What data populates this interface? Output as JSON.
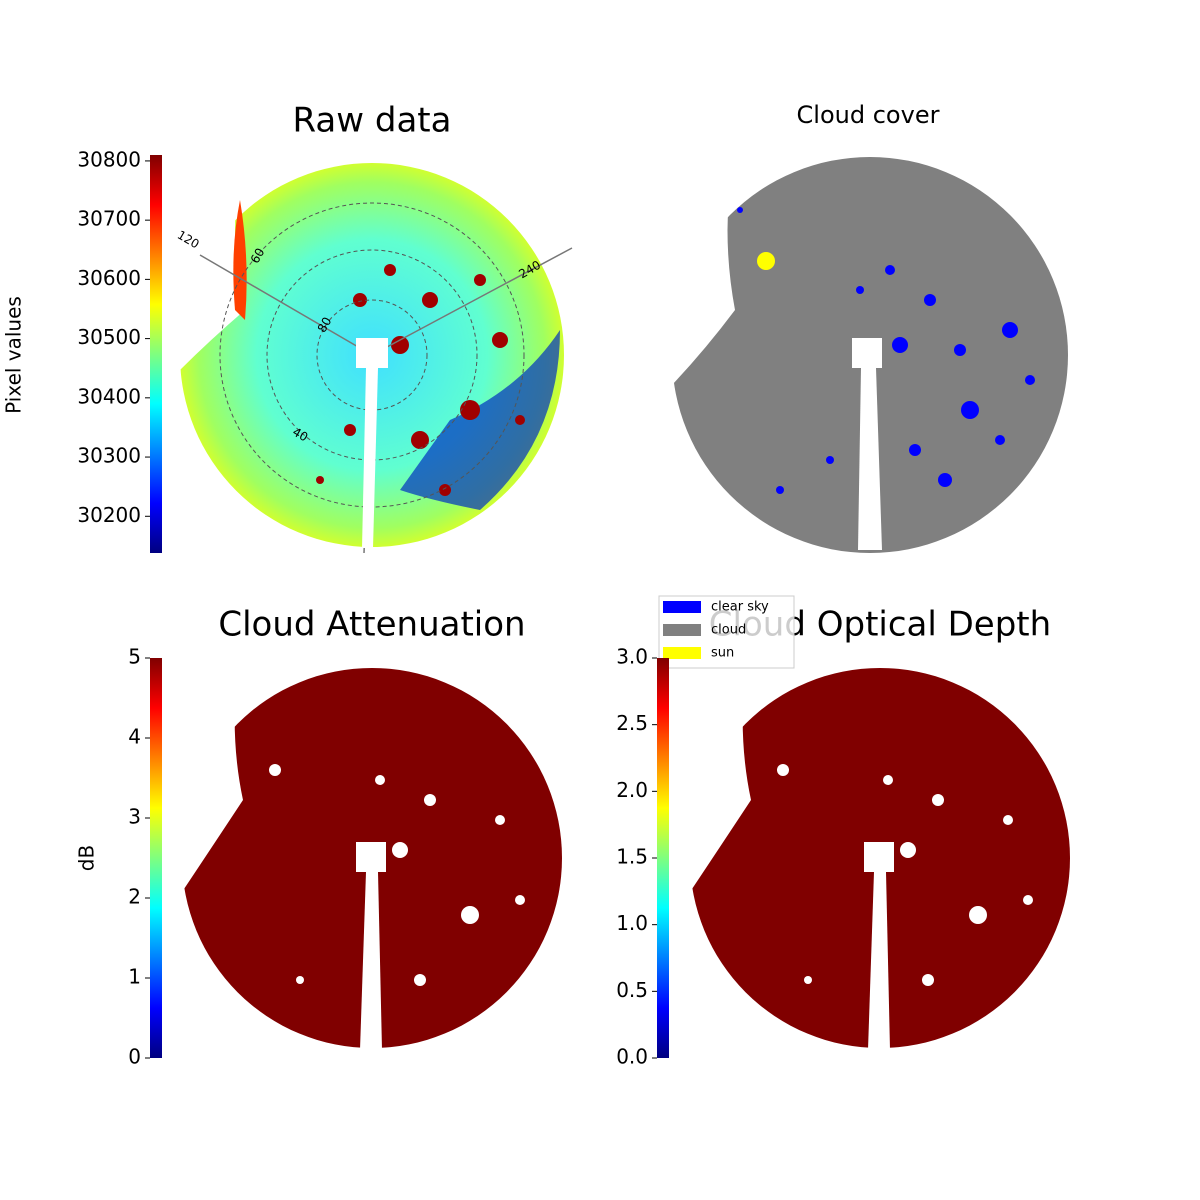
{
  "chart_data": [
    {
      "type": "image",
      "title": "Raw data",
      "colorbar": {
        "label": "Pixel values",
        "colormap": "jet",
        "lim": [
          30138,
          30810
        ],
        "ticks": [
          30200,
          30300,
          30400,
          30500,
          30600,
          30700,
          30800
        ]
      },
      "polar_labels": [
        "120",
        "60",
        "240",
        "80",
        "40"
      ]
    },
    {
      "type": "image",
      "title": "Cloud cover",
      "legend": [
        {
          "name": "clear sky",
          "color": "#0000ff"
        },
        {
          "name": "cloud",
          "color": "#808080"
        },
        {
          "name": "sun",
          "color": "#ffff00"
        }
      ]
    },
    {
      "type": "image",
      "title": "Cloud Attenuation",
      "colorbar": {
        "label": "dB",
        "colormap": "jet",
        "lim": [
          0,
          5
        ],
        "ticks": [
          0,
          1,
          2,
          3,
          4,
          5
        ]
      }
    },
    {
      "type": "image",
      "title": "Cloud Optical Depth",
      "colorbar": {
        "colormap": "jet",
        "lim": [
          0,
          3
        ],
        "ticks": [
          {
            "value": 0,
            "label": "0.0"
          },
          {
            "value": 0.5,
            "label": "0.5"
          },
          {
            "value": 1,
            "label": "1.0"
          },
          {
            "value": 1.5,
            "label": "1.5"
          },
          {
            "value": 2,
            "label": "2.0"
          },
          {
            "value": 2.5,
            "label": "2.5"
          },
          {
            "value": 3,
            "label": "3.0"
          }
        ]
      }
    }
  ]
}
